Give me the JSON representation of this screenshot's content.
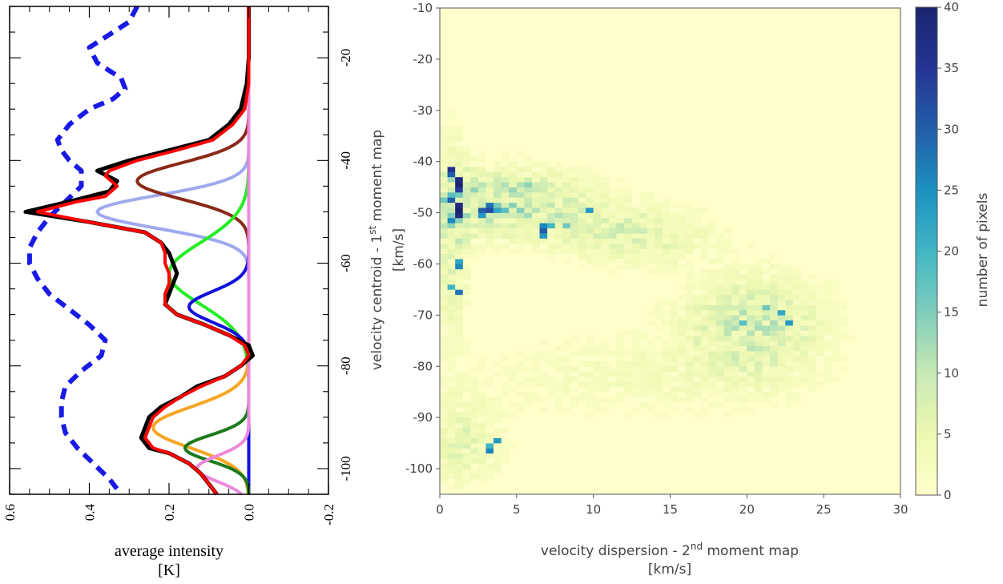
{
  "chart_data": [
    {
      "type": "line",
      "panel": "left",
      "orientation": "rotated-90",
      "xlabel": "average intensity",
      "xlabel_unit": "[K]",
      "xlim": [
        0.6,
        -0.2
      ],
      "x_ticks": [
        "0.6",
        "0.4",
        "0.2",
        "0.0",
        "-0.2"
      ],
      "ylim": [
        -105,
        -10
      ],
      "y_ticks": [
        "-20",
        "-40",
        "-60",
        "-80",
        "-100"
      ],
      "grid": false,
      "series": [
        {
          "role": "observed",
          "color": "#000000",
          "points": [
            [
              -10,
              0.0
            ],
            [
              -15,
              0.0
            ],
            [
              -20,
              0.0
            ],
            [
              -25,
              0.005
            ],
            [
              -30,
              0.02
            ],
            [
              -33,
              0.05
            ],
            [
              -36,
              0.1
            ],
            [
              -38,
              0.2
            ],
            [
              -40,
              0.3
            ],
            [
              -42,
              0.38
            ],
            [
              -44,
              0.33
            ],
            [
              -46,
              0.35
            ],
            [
              -48,
              0.45
            ],
            [
              -50,
              0.56
            ],
            [
              -52,
              0.4
            ],
            [
              -54,
              0.26
            ],
            [
              -56,
              0.22
            ],
            [
              -58,
              0.2
            ],
            [
              -60,
              0.19
            ],
            [
              -62,
              0.18
            ],
            [
              -64,
              0.19
            ],
            [
              -66,
              0.2
            ],
            [
              -68,
              0.21
            ],
            [
              -70,
              0.18
            ],
            [
              -72,
              0.11
            ],
            [
              -74,
              0.05
            ],
            [
              -76,
              0.0
            ],
            [
              -78,
              -0.01
            ],
            [
              -80,
              0.02
            ],
            [
              -82,
              0.06
            ],
            [
              -84,
              0.13
            ],
            [
              -86,
              0.17
            ],
            [
              -88,
              0.22
            ],
            [
              -90,
              0.25
            ],
            [
              -92,
              0.26
            ],
            [
              -94,
              0.27
            ],
            [
              -96,
              0.25
            ],
            [
              -97,
              0.2
            ],
            [
              -99,
              0.15
            ],
            [
              -101,
              0.12
            ],
            [
              -103,
              0.1
            ],
            [
              -105,
              0.08
            ]
          ]
        },
        {
          "role": "total fit",
          "color": "#ff0000",
          "points": [
            [
              -10,
              0.0
            ],
            [
              -15,
              0.0
            ],
            [
              -20,
              0.0
            ],
            [
              -25,
              0.0
            ],
            [
              -30,
              0.01
            ],
            [
              -33,
              0.04
            ],
            [
              -36,
              0.09
            ],
            [
              -38,
              0.18
            ],
            [
              -40,
              0.28
            ],
            [
              -42,
              0.35
            ],
            [
              -43,
              0.36
            ],
            [
              -45,
              0.33
            ],
            [
              -47,
              0.36
            ],
            [
              -48,
              0.43
            ],
            [
              -50,
              0.53
            ],
            [
              -52,
              0.4
            ],
            [
              -54,
              0.26
            ],
            [
              -56,
              0.22
            ],
            [
              -58,
              0.21
            ],
            [
              -60,
              0.21
            ],
            [
              -62,
              0.2
            ],
            [
              -64,
              0.2
            ],
            [
              -66,
              0.21
            ],
            [
              -68,
              0.21
            ],
            [
              -70,
              0.18
            ],
            [
              -72,
              0.11
            ],
            [
              -74,
              0.05
            ],
            [
              -76,
              0.01
            ],
            [
              -78,
              0.0
            ],
            [
              -80,
              0.02
            ],
            [
              -82,
              0.06
            ],
            [
              -84,
              0.12
            ],
            [
              -86,
              0.17
            ],
            [
              -88,
              0.21
            ],
            [
              -90,
              0.24
            ],
            [
              -92,
              0.25
            ],
            [
              -94,
              0.26
            ],
            [
              -96,
              0.24
            ],
            [
              -97,
              0.2
            ],
            [
              -99,
              0.15
            ],
            [
              -101,
              0.12
            ],
            [
              -103,
              0.1
            ],
            [
              -105,
              0.08
            ]
          ]
        },
        {
          "role": "component",
          "color": "#9fa9ec",
          "center": -50.0,
          "amplitude": 0.38,
          "width": 3.2
        },
        {
          "role": "component",
          "color": "#8b2a1a",
          "center": -44.0,
          "amplitude": 0.28,
          "width": 3.5
        },
        {
          "role": "component",
          "color": "#22ee22",
          "center": -62.0,
          "amplitude": 0.2,
          "width": 6.0
        },
        {
          "role": "component",
          "color": "#1010dd",
          "center": -68.5,
          "amplitude": 0.15,
          "width": 3.0
        },
        {
          "role": "component",
          "color": "#f5a623",
          "center": -92.0,
          "amplitude": 0.24,
          "width": 4.0
        },
        {
          "role": "component",
          "color": "#1a7a1a",
          "center": -96.0,
          "amplitude": 0.16,
          "width": 2.5
        },
        {
          "role": "component",
          "color": "#ee88dd",
          "center": -100.0,
          "amplitude": 0.13,
          "width": 2.5
        },
        {
          "role": "dashed",
          "color": "#1a1ae6",
          "style": "dashed",
          "points": [
            [
              -10,
              0.28
            ],
            [
              -13,
              0.3
            ],
            [
              -16,
              0.36
            ],
            [
              -18,
              0.4
            ],
            [
              -21,
              0.38
            ],
            [
              -24,
              0.32
            ],
            [
              -26,
              0.31
            ],
            [
              -28,
              0.34
            ],
            [
              -30,
              0.4
            ],
            [
              -33,
              0.45
            ],
            [
              -36,
              0.48
            ],
            [
              -38,
              0.47
            ],
            [
              -40,
              0.45
            ],
            [
              -42,
              0.42
            ],
            [
              -45,
              0.42
            ],
            [
              -48,
              0.46
            ],
            [
              -51,
              0.5
            ],
            [
              -54,
              0.53
            ],
            [
              -57,
              0.55
            ],
            [
              -60,
              0.55
            ],
            [
              -63,
              0.53
            ],
            [
              -66,
              0.5
            ],
            [
              -69,
              0.45
            ],
            [
              -72,
              0.4
            ],
            [
              -75,
              0.36
            ],
            [
              -78,
              0.37
            ],
            [
              -81,
              0.42
            ],
            [
              -84,
              0.46
            ],
            [
              -87,
              0.47
            ],
            [
              -90,
              0.47
            ],
            [
              -93,
              0.46
            ],
            [
              -96,
              0.43
            ],
            [
              -99,
              0.39
            ],
            [
              -102,
              0.35
            ],
            [
              -105,
              0.32
            ]
          ]
        }
      ]
    },
    {
      "type": "heatmap",
      "panel": "right",
      "xlabel": "velocity dispersion - 2",
      "xlabel_sup": "nd",
      "xlabel_tail": " moment map",
      "xlabel_unit": "[km/s]",
      "ylabel": "velocity centroid - 1",
      "ylabel_sup": "st",
      "ylabel_tail": " moment map",
      "ylabel_unit": "[km/s]",
      "xlim": [
        0,
        30
      ],
      "ylim": [
        -105,
        -10
      ],
      "x_ticks": [
        "0",
        "5",
        "10",
        "15",
        "20",
        "25",
        "30"
      ],
      "y_ticks": [
        "-10",
        "-20",
        "-30",
        "-40",
        "-50",
        "-60",
        "-70",
        "-80",
        "-90",
        "-100"
      ],
      "colorbar": {
        "label": "number of pixels",
        "min": 0,
        "max": 40,
        "ticks": [
          "0",
          "5",
          "10",
          "15",
          "20",
          "25",
          "30",
          "35",
          "40"
        ]
      },
      "clusters": [
        {
          "x": 4.0,
          "y": -48.0,
          "sx": 4.0,
          "sy": 4.5,
          "peak": 10
        },
        {
          "x": 12.5,
          "y": -54.0,
          "sx": 3.5,
          "sy": 4.0,
          "peak": 6
        },
        {
          "x": 20.5,
          "y": -72.0,
          "sx": 3.2,
          "sy": 7.0,
          "peak": 8
        },
        {
          "x": 12.0,
          "y": -82.0,
          "sx": 7.0,
          "sy": 6.0,
          "peak": 2.5
        },
        {
          "x": 0.8,
          "y": -55.0,
          "sx": 0.8,
          "sy": 14.0,
          "peak": 6
        },
        {
          "x": 1.5,
          "y": -95.0,
          "sx": 1.8,
          "sy": 6.0,
          "peak": 5
        }
      ],
      "hotspots": [
        {
          "x": 0.5,
          "y": -41,
          "v": 36
        },
        {
          "x": 0.5,
          "y": -42,
          "v": 30
        },
        {
          "x": 1.0,
          "y": -43,
          "v": 38
        },
        {
          "x": 1.0,
          "y": -44,
          "v": 40
        },
        {
          "x": 1.0,
          "y": -45,
          "v": 34
        },
        {
          "x": 0.5,
          "y": -47,
          "v": 30
        },
        {
          "x": 1.0,
          "y": -48,
          "v": 38
        },
        {
          "x": 1.0,
          "y": -49,
          "v": 40
        },
        {
          "x": 1.0,
          "y": -50,
          "v": 38
        },
        {
          "x": 0.5,
          "y": -51,
          "v": 26
        },
        {
          "x": 2.5,
          "y": -49,
          "v": 30
        },
        {
          "x": 3.0,
          "y": -48,
          "v": 28
        },
        {
          "x": 3.0,
          "y": -49,
          "v": 32
        },
        {
          "x": 2.5,
          "y": -50,
          "v": 24
        },
        {
          "x": 3.5,
          "y": -49,
          "v": 22
        },
        {
          "x": 4.0,
          "y": -49,
          "v": 18
        },
        {
          "x": 6.5,
          "y": -52,
          "v": 26
        },
        {
          "x": 6.5,
          "y": -53,
          "v": 30
        },
        {
          "x": 6.5,
          "y": -54,
          "v": 24
        },
        {
          "x": 7.0,
          "y": -52,
          "v": 20
        },
        {
          "x": 9.5,
          "y": -49,
          "v": 24
        },
        {
          "x": 1.0,
          "y": -59,
          "v": 22
        },
        {
          "x": 1.0,
          "y": -60,
          "v": 26
        },
        {
          "x": 1.0,
          "y": -65,
          "v": 28
        },
        {
          "x": 0.5,
          "y": -64,
          "v": 20
        },
        {
          "x": 22.0,
          "y": -69,
          "v": 22
        },
        {
          "x": 22.5,
          "y": -71,
          "v": 24
        },
        {
          "x": 19.5,
          "y": -71,
          "v": 18
        },
        {
          "x": 3.0,
          "y": -96,
          "v": 26
        },
        {
          "x": 3.5,
          "y": -94,
          "v": 24
        },
        {
          "x": 3.0,
          "y": -95,
          "v": 20
        },
        {
          "x": 5.5,
          "y": -44,
          "v": 14
        },
        {
          "x": 8.0,
          "y": -52,
          "v": 16
        },
        {
          "x": 21.0,
          "y": -68,
          "v": 16
        }
      ]
    }
  ]
}
